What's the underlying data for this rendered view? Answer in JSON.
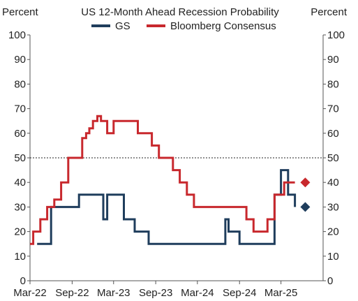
{
  "chart_data": {
    "type": "line",
    "title": "US 12-Month Ahead Recession Probability",
    "ylabel_left": "Percent",
    "ylabel_right": "Percent",
    "ylim": [
      0,
      100
    ],
    "yticks": [
      0,
      10,
      20,
      30,
      40,
      50,
      60,
      70,
      80,
      90,
      100
    ],
    "xlim": [
      "2022-03-01",
      "2025-09-01"
    ],
    "xticks": [
      {
        "date": "2022-03-01",
        "label": "Mar-22"
      },
      {
        "date": "2022-09-01",
        "label": "Sep-22"
      },
      {
        "date": "2023-03-01",
        "label": "Mar-23"
      },
      {
        "date": "2023-09-01",
        "label": "Sep-23"
      },
      {
        "date": "2024-03-01",
        "label": "Mar-24"
      },
      {
        "date": "2024-09-01",
        "label": "Sep-24"
      },
      {
        "date": "2025-03-01",
        "label": "Mar-25"
      }
    ],
    "reference_line": {
      "y": 50,
      "style": "dashed"
    },
    "grid": false,
    "legend": {
      "position": "top-center",
      "entries": [
        "GS",
        "Bloomberg Consensus"
      ]
    },
    "series": [
      {
        "name": "GS",
        "color": "#1f3d5c",
        "step": true,
        "points": [
          [
            "2022-04-01",
            15
          ],
          [
            "2022-06-01",
            30
          ],
          [
            "2022-08-01",
            30
          ],
          [
            "2022-10-01",
            35
          ],
          [
            "2022-12-01",
            35
          ],
          [
            "2023-01-15",
            25
          ],
          [
            "2023-02-01",
            35
          ],
          [
            "2023-04-15",
            25
          ],
          [
            "2023-06-01",
            20
          ],
          [
            "2023-08-01",
            15
          ],
          [
            "2024-07-01",
            25
          ],
          [
            "2024-07-15",
            20
          ],
          [
            "2024-09-01",
            15
          ],
          [
            "2024-11-01",
            15
          ],
          [
            "2025-01-15",
            15
          ],
          [
            "2025-02-01",
            35
          ],
          [
            "2025-03-01",
            45
          ],
          [
            "2025-04-01",
            35
          ],
          [
            "2025-05-01",
            30
          ]
        ],
        "marker": {
          "date": "2025-06-15",
          "value": 30,
          "shape": "diamond"
        }
      },
      {
        "name": "Bloomberg Consensus",
        "color": "#c8282d",
        "step": true,
        "points": [
          [
            "2022-03-01",
            15
          ],
          [
            "2022-03-15",
            20
          ],
          [
            "2022-04-15",
            25
          ],
          [
            "2022-05-15",
            30
          ],
          [
            "2022-06-15",
            33
          ],
          [
            "2022-07-15",
            40
          ],
          [
            "2022-08-15",
            50
          ],
          [
            "2022-10-15",
            58
          ],
          [
            "2022-11-01",
            60
          ],
          [
            "2022-11-15",
            62
          ],
          [
            "2022-12-01",
            65
          ],
          [
            "2022-12-20",
            67
          ],
          [
            "2023-01-05",
            65
          ],
          [
            "2023-02-01",
            60
          ],
          [
            "2023-03-01",
            65
          ],
          [
            "2023-05-15",
            65
          ],
          [
            "2023-06-15",
            60
          ],
          [
            "2023-08-15",
            55
          ],
          [
            "2023-09-15",
            50
          ],
          [
            "2023-11-15",
            45
          ],
          [
            "2023-12-15",
            40
          ],
          [
            "2024-01-15",
            35
          ],
          [
            "2024-02-15",
            30
          ],
          [
            "2024-06-01",
            30
          ],
          [
            "2024-09-01",
            30
          ],
          [
            "2024-10-01",
            25
          ],
          [
            "2024-11-01",
            20
          ],
          [
            "2025-01-01",
            25
          ],
          [
            "2025-02-01",
            35
          ],
          [
            "2025-03-15",
            40
          ],
          [
            "2025-05-01",
            40
          ]
        ],
        "marker": {
          "date": "2025-06-15",
          "value": 40,
          "shape": "diamond"
        }
      }
    ]
  }
}
